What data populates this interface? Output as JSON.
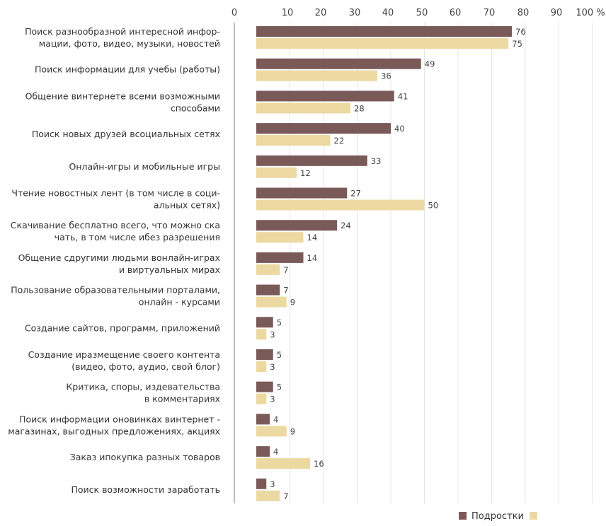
{
  "chart_data": {
    "type": "bar",
    "orientation": "horizontal",
    "xlim": [
      0,
      100
    ],
    "x_ticks": [
      "0",
      "10",
      "20",
      "30",
      "40",
      "50",
      "60",
      "70",
      "80",
      "90",
      "100 %"
    ],
    "grid": true,
    "legend_position": "bottom-right",
    "categories": [
      [
        "Поиск разнообразной интересной инфор-",
        "мации, фото, видео, музыки, новостей"
      ],
      [
        "Поиск информации для учебы (работы)"
      ],
      [
        "Общение винтернете всеми возможными",
        "способами"
      ],
      [
        "Поиск новых друзей всоциальных сетях"
      ],
      [
        "Онлайн-игры и мобильные игры"
      ],
      [
        "Чтение новостных лент (в том числе в соци-",
        "альных сетях)"
      ],
      [
        "Скачивание бесплатно всего, что можно ска",
        "чать, в том числе ибез разрешения"
      ],
      [
        "Общение сдругими людьми вонлайн-играх",
        "и виртуальных мирах"
      ],
      [
        "Пользование образовательными порталами,",
        "онлайн - курсами"
      ],
      [
        "Создание сайтов, программ, приложений"
      ],
      [
        "Создание иразмещение своего контента",
        "(видео, фото, аудио, свой блог)"
      ],
      [
        "Критика, споры, издевательства",
        "в комментариях"
      ],
      [
        "Поиск информации оновинках винтернет -",
        "магазинах, выгодных предложениях, акциях"
      ],
      [
        "Заказ ипокупка разных товаров"
      ],
      [
        "Поиск возможности заработать"
      ]
    ],
    "series": [
      {
        "name": "Подростки",
        "color": "#7a5a58",
        "values": [
          76,
          49,
          41,
          40,
          33,
          27,
          24,
          14,
          7,
          5,
          5,
          5,
          4,
          4,
          3
        ]
      },
      {
        "name": "",
        "color": "#ecd9a2",
        "values": [
          75,
          36,
          28,
          22,
          12,
          50,
          14,
          7,
          9,
          3,
          3,
          3,
          9,
          16,
          7
        ]
      }
    ]
  }
}
